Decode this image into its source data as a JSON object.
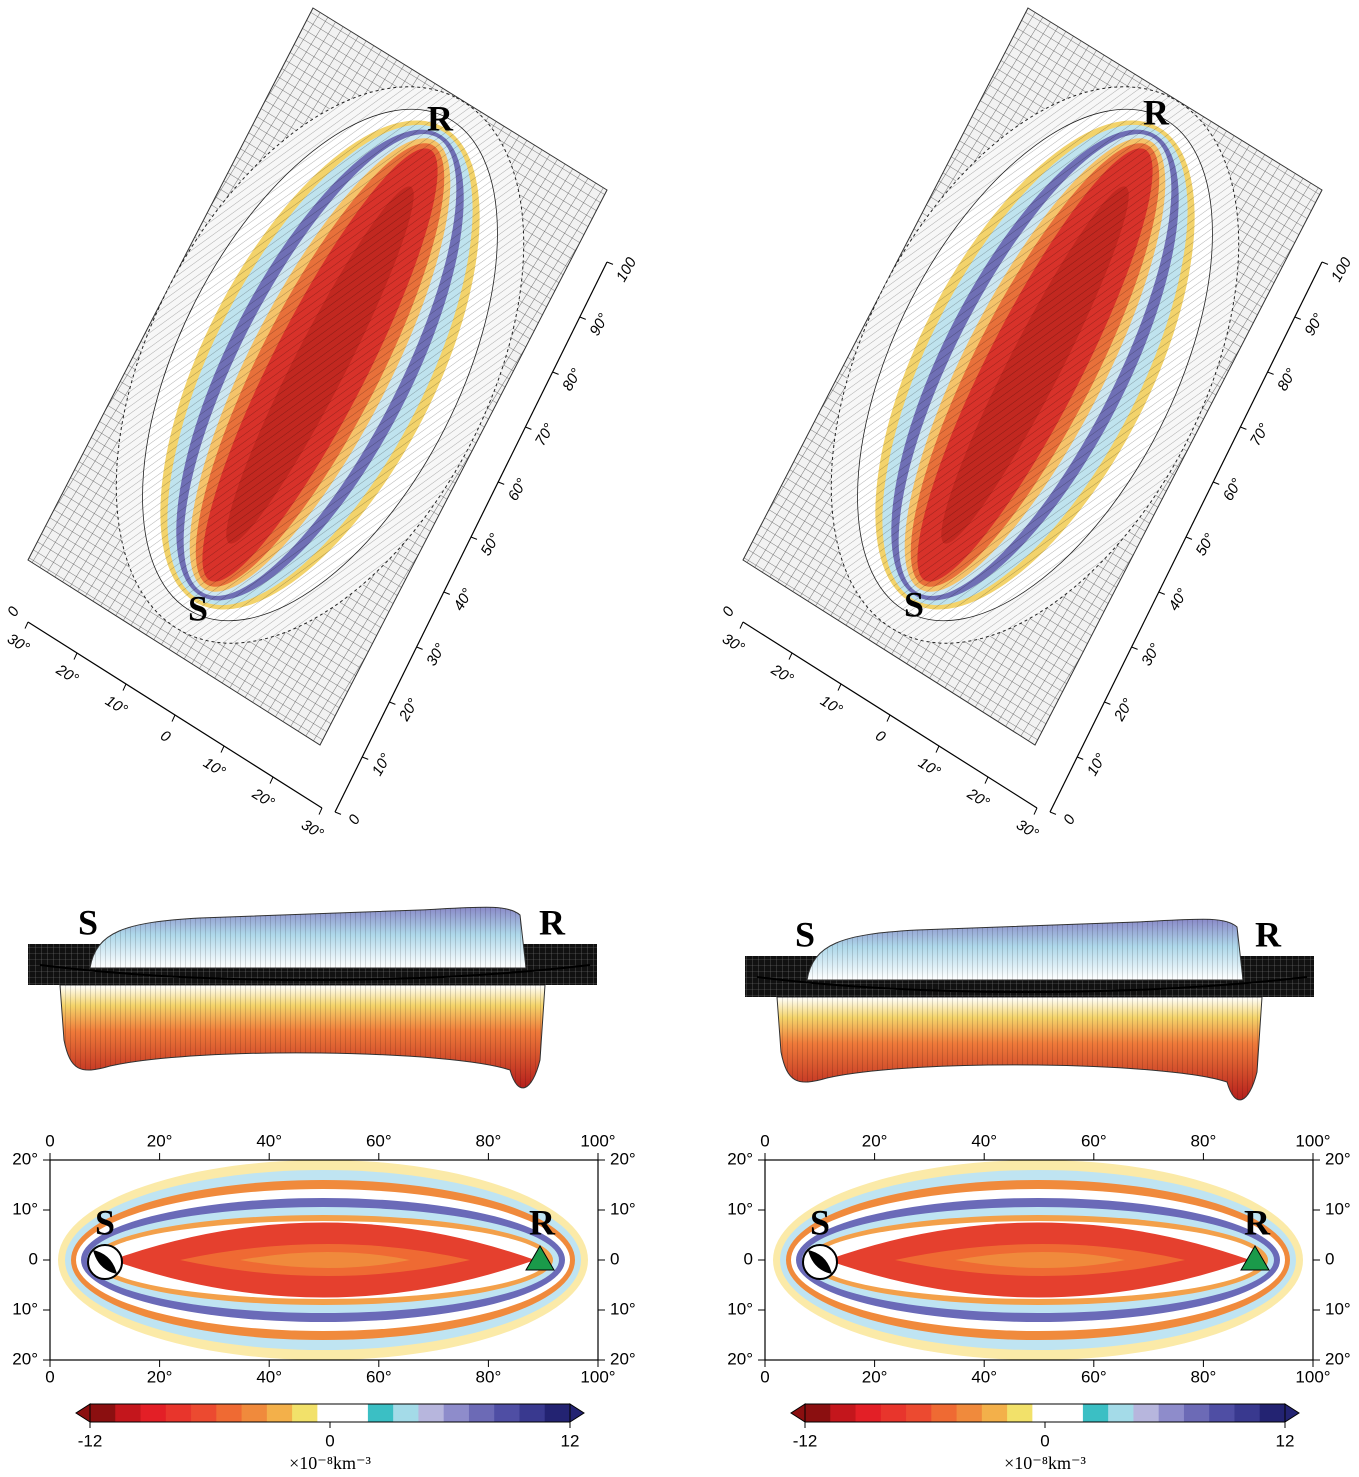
{
  "figure": {
    "panels": [
      {
        "surface": {
          "source": "S",
          "receiver": "R",
          "corner_label": "0",
          "across_ticks": [
            {
              "value": 30,
              "label": "30°"
            },
            {
              "value": 20,
              "label": "20°"
            },
            {
              "value": 10,
              "label": "10°"
            },
            0,
            {
              "value": -10,
              "label": "10°"
            },
            {
              "value": -20,
              "label": "20°"
            },
            {
              "value": -30,
              "label": "30°"
            }
          ],
          "along_ticks": [
            0,
            {
              "value": 10,
              "label": "10°"
            },
            {
              "value": 20,
              "label": "20°"
            },
            {
              "value": 30,
              "label": "30°"
            },
            {
              "value": 40,
              "label": "40°"
            },
            {
              "value": 50,
              "label": "50°"
            },
            {
              "value": 60,
              "label": "60°"
            },
            {
              "value": 70,
              "label": "70°"
            },
            {
              "value": 80,
              "label": "80°"
            },
            {
              "value": 90,
              "label": "90°"
            },
            100
          ],
          "across_lim": [
            30,
            -30
          ],
          "along_lim": [
            0,
            100
          ]
        },
        "side_view": {
          "source": "S",
          "receiver": "R"
        },
        "map": {
          "source": "S",
          "receiver": "R",
          "xlim": [
            0,
            100
          ],
          "ylim": [
            -20,
            20
          ],
          "xticks": [
            0,
            {
              "value": 20,
              "label": "20°"
            },
            {
              "value": 40,
              "label": "40°"
            },
            {
              "value": 60,
              "label": "60°"
            },
            {
              "value": 80,
              "label": "80°"
            },
            {
              "value": 100,
              "label": "100°"
            }
          ],
          "yticks": [
            {
              "value": 20,
              "label": "20°"
            },
            {
              "value": 10,
              "label": "10°"
            },
            0,
            {
              "value": -10,
              "label": "10°"
            },
            {
              "value": -20,
              "label": "20°"
            }
          ]
        },
        "colorbar": {
          "clim": [
            -12,
            12
          ],
          "ticks": [
            -12,
            0,
            12
          ],
          "unit": "×10⁻⁸km⁻³",
          "colors": [
            "#8b0f10",
            "#c4161c",
            "#e31f26",
            "#e8352c",
            "#ec4a30",
            "#ef6a33",
            "#f08a3c",
            "#f3b04a",
            "#f2e16a",
            "#ffffff",
            "#ffffff",
            "#3bbfc4",
            "#a4dbe8",
            "#b7b6dd",
            "#8e8ccb",
            "#6c6ab6",
            "#4f4ea4",
            "#39398f",
            "#232372"
          ]
        }
      },
      {
        "surface": {
          "source": "S",
          "receiver": "R",
          "corner_label": "0",
          "across_ticks": [
            {
              "value": 30,
              "label": "30°"
            },
            {
              "value": 20,
              "label": "20°"
            },
            {
              "value": 10,
              "label": "10°"
            },
            0,
            {
              "value": -10,
              "label": "10°"
            },
            {
              "value": -20,
              "label": "20°"
            },
            {
              "value": -30,
              "label": "30°"
            }
          ],
          "along_ticks": [
            0,
            {
              "value": 10,
              "label": "10°"
            },
            {
              "value": 20,
              "label": "20°"
            },
            {
              "value": 30,
              "label": "30°"
            },
            {
              "value": 40,
              "label": "40°"
            },
            {
              "value": 50,
              "label": "50°"
            },
            {
              "value": 60,
              "label": "60°"
            },
            {
              "value": 70,
              "label": "70°"
            },
            {
              "value": 80,
              "label": "80°"
            },
            {
              "value": 90,
              "label": "90°"
            },
            100
          ],
          "across_lim": [
            30,
            -30
          ],
          "along_lim": [
            0,
            100
          ]
        },
        "side_view": {
          "source": "S",
          "receiver": "R"
        },
        "map": {
          "source": "S",
          "receiver": "R",
          "xlim": [
            0,
            100
          ],
          "ylim": [
            -20,
            20
          ],
          "xticks": [
            0,
            {
              "value": 20,
              "label": "20°"
            },
            {
              "value": 40,
              "label": "40°"
            },
            {
              "value": 60,
              "label": "60°"
            },
            {
              "value": 80,
              "label": "80°"
            },
            {
              "value": 100,
              "label": "100°"
            }
          ],
          "yticks": [
            {
              "value": 20,
              "label": "20°"
            },
            {
              "value": 10,
              "label": "10°"
            },
            0,
            {
              "value": -10,
              "label": "10°"
            },
            {
              "value": -20,
              "label": "20°"
            }
          ]
        },
        "colorbar": {
          "clim": [
            -12,
            12
          ],
          "ticks": [
            -12,
            0,
            12
          ],
          "unit": "×10⁻⁸km⁻³",
          "colors": [
            "#8b0f10",
            "#c4161c",
            "#e31f26",
            "#e8352c",
            "#ec4a30",
            "#ef6a33",
            "#f08a3c",
            "#f3b04a",
            "#f2e16a",
            "#ffffff",
            "#ffffff",
            "#3bbfc4",
            "#a4dbe8",
            "#b7b6dd",
            "#8e8ccb",
            "#6c6ab6",
            "#4f4ea4",
            "#39398f",
            "#232372"
          ]
        }
      }
    ]
  }
}
